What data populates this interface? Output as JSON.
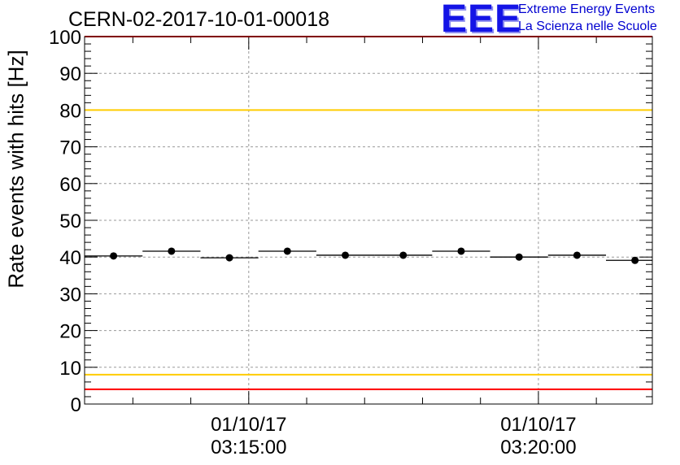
{
  "header": {
    "run_title": "CERN-02-2017-10-01-00018",
    "logo_text": "EEE",
    "logo_line1": "Extreme Energy Events",
    "logo_line2": "La Scienza nelle Scuole"
  },
  "chart_data": {
    "type": "scatter",
    "title": "CERN-02-2017-10-01-00018",
    "xlabel": "",
    "ylabel": "Rate events with hits [Hz]",
    "ylim": [
      0,
      100
    ],
    "yticks": [
      0,
      10,
      20,
      30,
      40,
      50,
      60,
      70,
      80,
      90,
      100
    ],
    "xlim": [
      "01/10/17 03:12:10",
      "01/10/17 03:21:58"
    ],
    "xticks": [
      {
        "date": "01/10/17",
        "time": "03:15:00"
      },
      {
        "date": "01/10/17",
        "time": "03:20:00"
      }
    ],
    "grid": true,
    "points": [
      {
        "x": "03:12:40",
        "x_start": "03:12:10",
        "x_end": "03:13:10",
        "y": 40.3
      },
      {
        "x": "03:13:40",
        "x_start": "03:13:10",
        "x_end": "03:14:10",
        "y": 41.6
      },
      {
        "x": "03:14:40",
        "x_start": "03:14:10",
        "x_end": "03:15:10",
        "y": 39.8
      },
      {
        "x": "03:15:40",
        "x_start": "03:15:10",
        "x_end": "03:16:10",
        "y": 41.6
      },
      {
        "x": "03:16:40",
        "x_start": "03:16:10",
        "x_end": "03:17:10",
        "y": 40.5
      },
      {
        "x": "03:17:40",
        "x_start": "03:17:10",
        "x_end": "03:18:10",
        "y": 40.5
      },
      {
        "x": "03:18:40",
        "x_start": "03:18:10",
        "x_end": "03:19:10",
        "y": 41.6
      },
      {
        "x": "03:19:40",
        "x_start": "03:19:10",
        "x_end": "03:20:10",
        "y": 40.0
      },
      {
        "x": "03:20:40",
        "x_start": "03:20:10",
        "x_end": "03:21:10",
        "y": 40.5
      },
      {
        "x": "03:21:40",
        "x_start": "03:21:10",
        "x_end": "03:21:58",
        "y": 39.1
      }
    ],
    "reference_lines": [
      {
        "y": 100,
        "color": "#ff0000"
      },
      {
        "y": 80,
        "color": "#ffcc00"
      },
      {
        "y": 8,
        "color": "#ffcc00"
      },
      {
        "y": 4,
        "color": "#ff0000"
      }
    ]
  }
}
